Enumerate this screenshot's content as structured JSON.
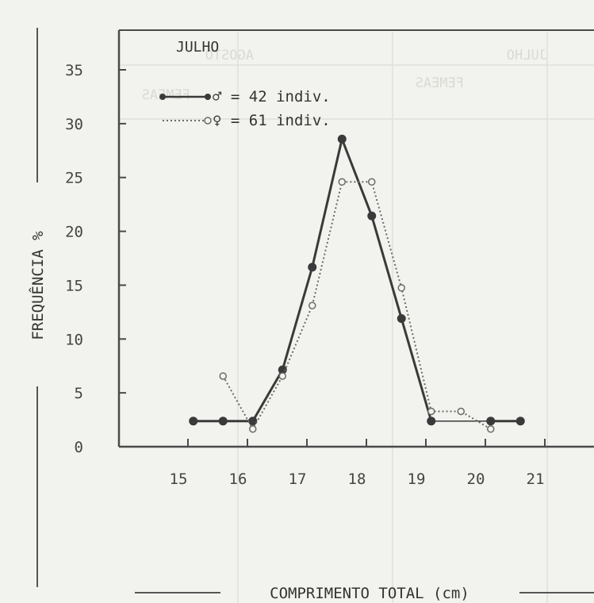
{
  "chart_data": {
    "type": "line",
    "title": "JULHO",
    "xlabel": "COMPRIMENTO TOTAL (cm)",
    "ylabel": "FREQUÊNCIA %",
    "x_ticks": [
      "15",
      "16",
      "17",
      "18",
      "19",
      "20",
      "21"
    ],
    "y_ticks": [
      "0",
      "5",
      "10",
      "15",
      "20",
      "25",
      "30",
      "35"
    ],
    "xlim": [
      14.5,
      21.8
    ],
    "ylim": [
      0,
      38
    ],
    "grid": false,
    "legend_position": "top-left",
    "series": [
      {
        "name": "♂ = 42 indiv.",
        "color": "#3a3a3a",
        "style": "solid",
        "marker": "filled-circle",
        "x": [
          15.25,
          15.75,
          16.25,
          16.75,
          17.25,
          17.75,
          18.25,
          18.75,
          19.25,
          19.75,
          20.25,
          20.75
        ],
        "y": [
          2.38,
          2.38,
          2.38,
          7.14,
          16.67,
          28.57,
          21.43,
          11.9,
          2.38,
          null,
          2.38,
          2.38
        ]
      },
      {
        "name": "♀ = 61 indiv.",
        "color": "#6a6a6a",
        "style": "dotted",
        "marker": "open-circle",
        "x": [
          15.75,
          16.25,
          16.75,
          17.25,
          17.75,
          18.25,
          18.75,
          19.25,
          19.75,
          20.25
        ],
        "y": [
          6.56,
          1.64,
          6.56,
          13.11,
          24.59,
          24.59,
          14.75,
          3.28,
          3.28,
          1.64
        ]
      }
    ]
  }
}
